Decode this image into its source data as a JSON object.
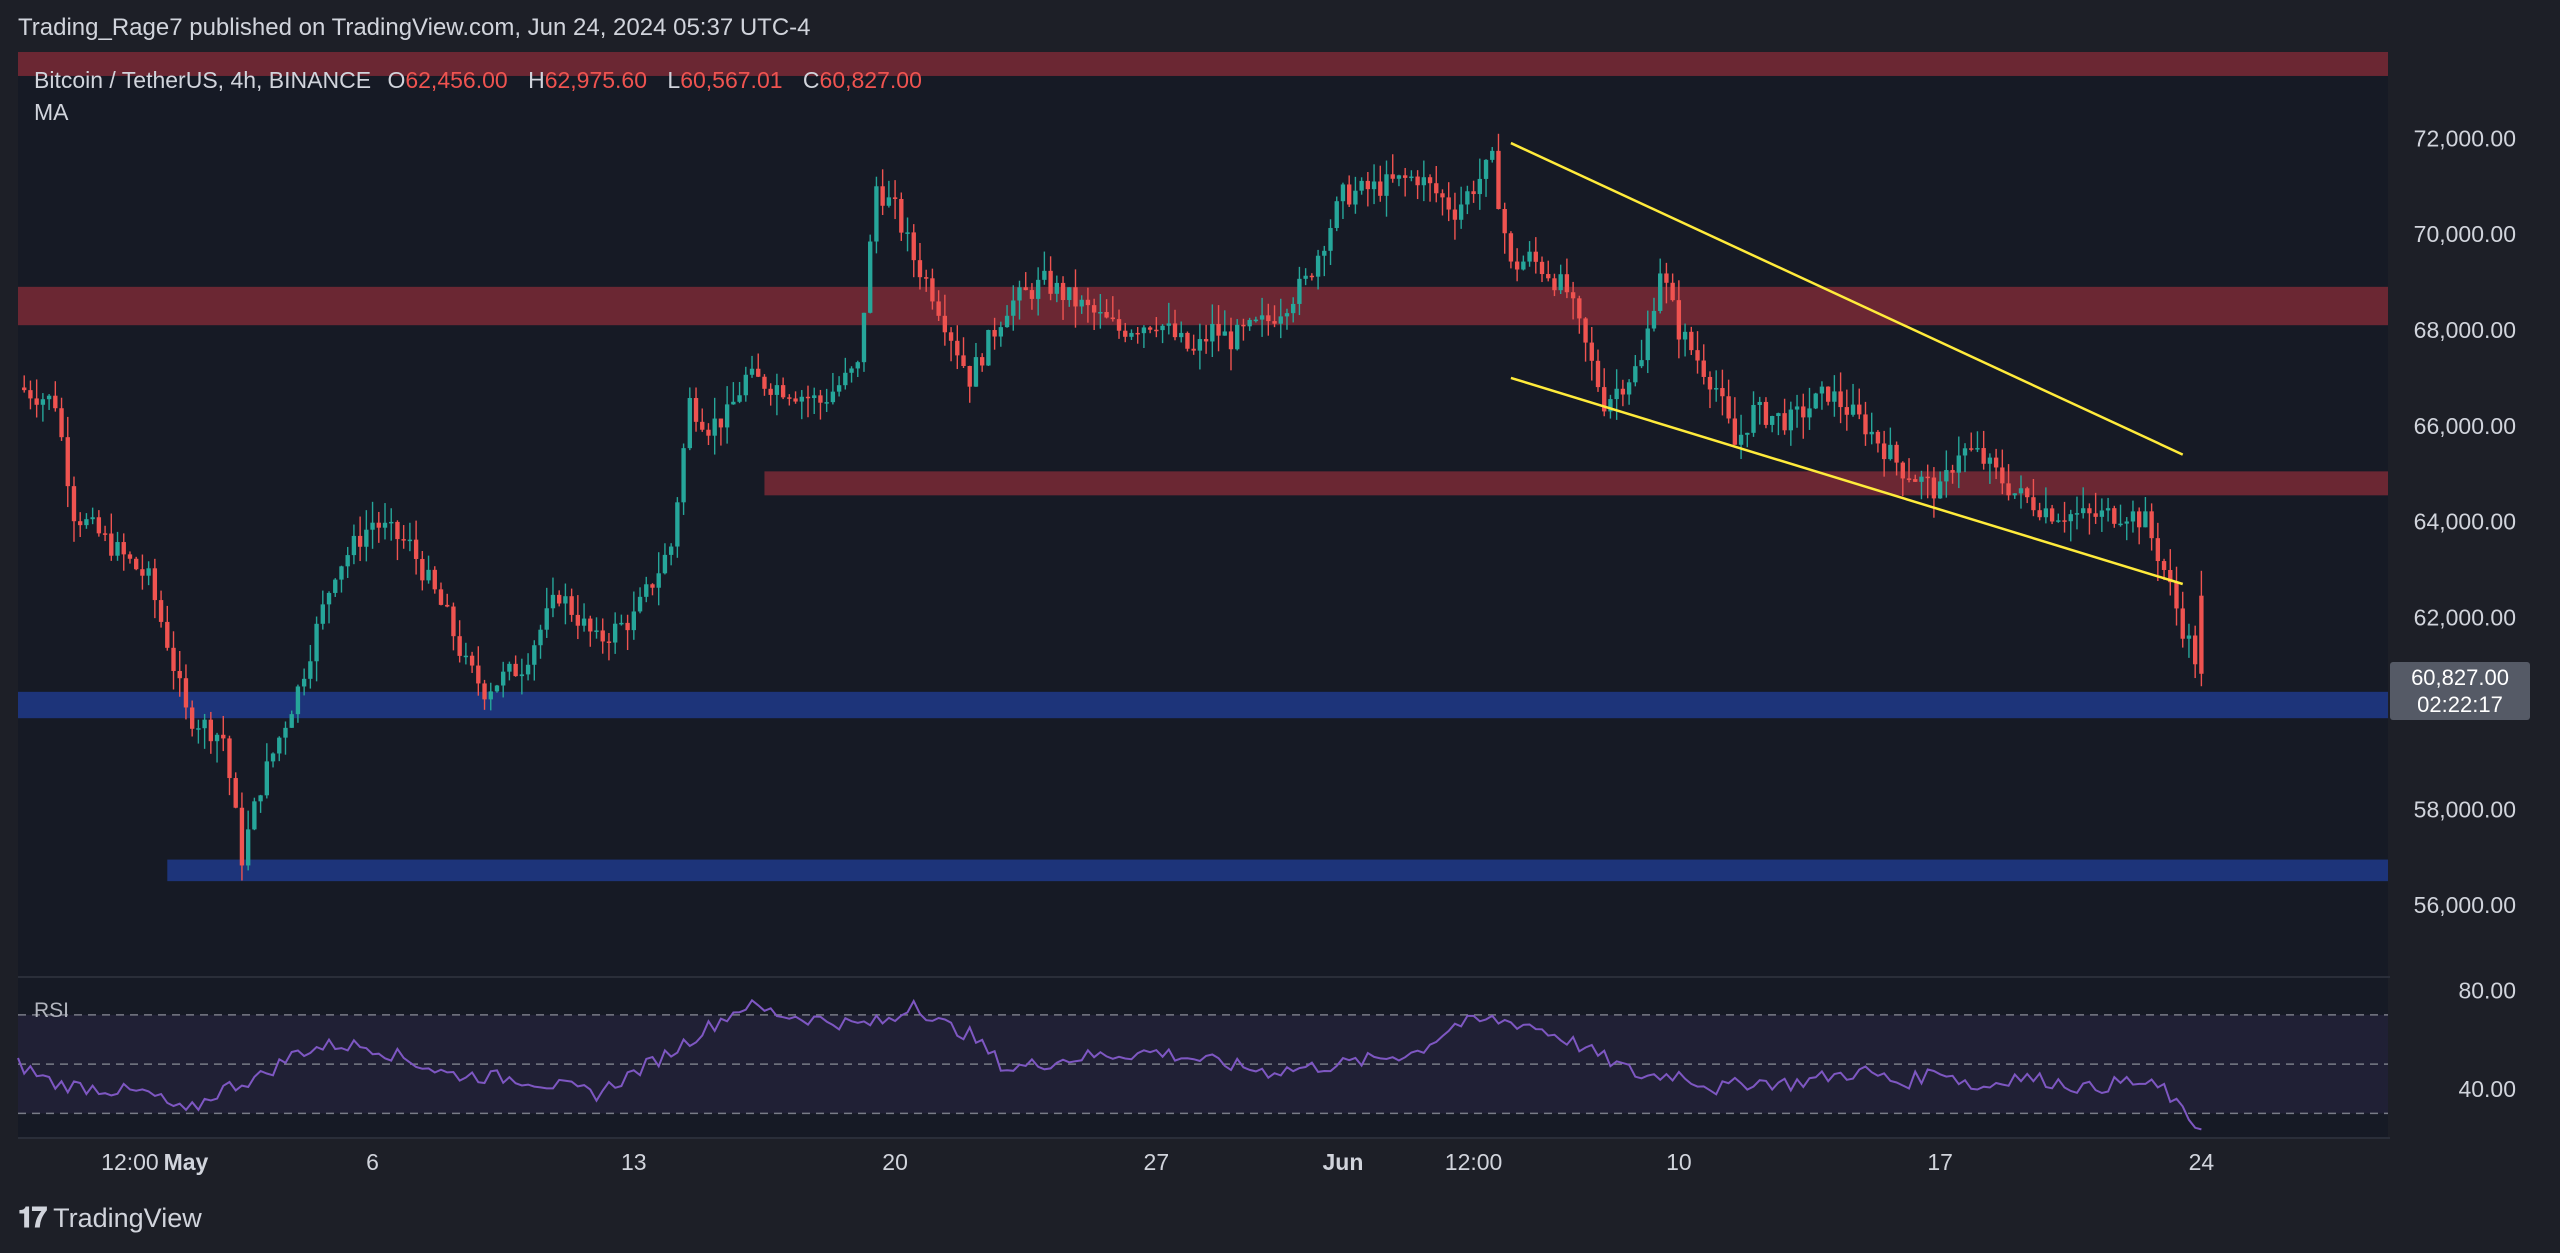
{
  "header": {
    "published_text": "Trading_Rage7 published on TradingView.com, Jun 24, 2024 05:37 UTC-4"
  },
  "symbol": {
    "name": "Bitcoin / TetherUS, 4h, BINANCE",
    "o_label": "O",
    "o_value": "62,456.00",
    "h_label": "H",
    "h_value": "62,975.60",
    "l_label": "L",
    "l_value": "60,567.01",
    "c_label": "C",
    "c_value": "60,827.00",
    "indicator": "MA"
  },
  "price_tag": {
    "price": "60,827.00",
    "countdown": "02:22:17"
  },
  "footer": {
    "brand": "TradingView"
  },
  "colors": {
    "up": "#26a69a",
    "down": "#ef5350",
    "resistance": "#7a2a36",
    "support": "#1e3a8a",
    "trendline": "#ffeb3b",
    "rsi": "#7e57c2",
    "background": "#1d1f27",
    "pane": "#161a25"
  },
  "chart_data": {
    "type": "candlestick",
    "interval": "4h",
    "y_ticks": [
      72000,
      70000,
      68000,
      66000,
      64000,
      62000,
      58000,
      56000
    ],
    "y_tick_labels": [
      "72,000.00",
      "70,000.00",
      "68,000.00",
      "66,000.00",
      "64,000.00",
      "62,000.00",
      "58,000.00",
      "56,000.00"
    ],
    "x_tick_labels": [
      "12:00",
      "May",
      "6",
      "13",
      "20",
      "27",
      "Jun",
      "12:00",
      "10",
      "17",
      "24"
    ],
    "x_tick_days": [
      -0.5,
      1,
      6,
      13,
      20,
      27,
      32,
      35.5,
      41,
      48,
      55
    ],
    "x_range_days": [
      -3.5,
      60
    ],
    "y_range": [
      54500,
      73800
    ],
    "path_days": [
      -3.5,
      -2.5,
      -2,
      -1,
      0,
      0.5,
      1,
      2,
      2.5,
      3,
      3.5,
      4,
      5,
      6,
      7,
      8,
      8.5,
      9,
      10,
      11,
      12,
      13,
      14,
      14.5,
      15,
      15.5,
      16,
      17,
      18,
      19,
      19.5,
      20,
      20.5,
      21,
      22,
      23,
      24,
      25,
      26,
      27,
      28,
      28.5,
      29,
      30,
      31,
      32,
      33,
      34,
      35,
      36,
      36.5,
      37,
      37.5,
      38,
      39,
      40,
      40.5,
      41,
      42,
      42.5,
      43,
      44,
      45,
      46,
      47,
      48,
      48.5,
      49,
      50,
      51,
      52,
      53,
      53.5,
      54,
      54.5,
      55
    ],
    "path_prices": [
      66800,
      66500,
      64200,
      63500,
      62800,
      61500,
      60000,
      59500,
      57000,
      58500,
      59500,
      60500,
      63000,
      64000,
      63500,
      62000,
      61000,
      60500,
      61000,
      62500,
      61500,
      62000,
      63500,
      66500,
      66000,
      66200,
      67000,
      66800,
      66500,
      67200,
      71000,
      70500,
      69500,
      68800,
      67000,
      68500,
      69000,
      68500,
      68000,
      68200,
      67500,
      68000,
      67800,
      68200,
      69000,
      70800,
      71000,
      71200,
      70500,
      71500,
      69300,
      69500,
      69200,
      68800,
      66500,
      67300,
      69300,
      68000,
      66800,
      65600,
      66300,
      66100,
      66700,
      66000,
      65100,
      64600,
      65500,
      65400,
      64600,
      64200,
      64100,
      64200,
      64000,
      63000,
      61800,
      60827
    ],
    "resistance_zones": [
      [
        73300,
        73800
      ],
      [
        68100,
        68900
      ],
      [
        64550,
        65050
      ]
    ],
    "support_zones": [
      [
        59900,
        60450
      ],
      [
        56500,
        56950
      ]
    ],
    "trendlines": [
      {
        "from": [
          36.5,
          71900
        ],
        "to": [
          54.5,
          65400
        ]
      },
      {
        "from": [
          36.5,
          67000
        ],
        "to": [
          54.5,
          62700
        ]
      }
    ],
    "last": {
      "open": 62456.0,
      "high": 62975.6,
      "low": 60567.01,
      "close": 60827.0
    },
    "rsi": {
      "label": "RSI",
      "ticks": [
        80,
        40
      ],
      "tick_labels": [
        "80.00",
        "40.00"
      ],
      "band_levels": [
        70,
        50,
        30
      ],
      "y_range": [
        20,
        85
      ],
      "days": [
        -3.5,
        -2.5,
        0,
        1,
        2,
        3,
        4,
        5,
        6,
        8,
        10,
        12,
        14,
        15,
        16,
        17,
        18,
        19,
        20,
        20.5,
        21,
        22,
        23,
        25,
        27,
        30,
        32,
        34,
        35,
        36,
        37,
        38,
        40,
        41,
        42,
        43,
        44,
        45,
        46,
        47,
        48,
        49,
        50,
        51,
        52,
        53,
        54,
        54.5,
        55
      ],
      "values": [
        50,
        42,
        38,
        30,
        40,
        45,
        55,
        58,
        57,
        46,
        44,
        38,
        55,
        65,
        74,
        70,
        68,
        66,
        68,
        76,
        68,
        62,
        48,
        53,
        55,
        47,
        50,
        55,
        66,
        68,
        66,
        60,
        45,
        46,
        40,
        43,
        42,
        45,
        47,
        42,
        48,
        40,
        45,
        43,
        40,
        43,
        40,
        30,
        24
      ]
    }
  }
}
